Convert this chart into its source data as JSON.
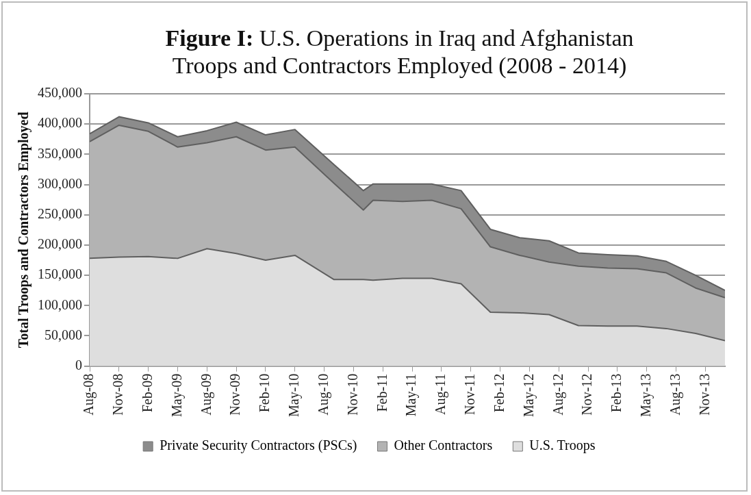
{
  "chart_data": {
    "type": "area",
    "title": "Figure I: U.S. Operations in Iraq and Afghanistan",
    "subtitle": "Troops and Contractors Employed (2008 - 2014)",
    "ylabel": "Total Troops and Contractors Employed",
    "stacked": true,
    "grid": "y",
    "legend": "bottom",
    "x": [
      "2008-08",
      "2008-11",
      "2009-02",
      "2009-05",
      "2009-08",
      "2009-11",
      "2010-02",
      "2010-05",
      "2010-09",
      "2010-12",
      "2011-01",
      "2011-04",
      "2011-07",
      "2011-10",
      "2012-01",
      "2012-04",
      "2012-07",
      "2012-10",
      "2013-01",
      "2013-04",
      "2013-07",
      "2013-10",
      "2014-01"
    ],
    "xlim": [
      "2008-08",
      "2014-01"
    ],
    "xticks": [
      {
        "value": "2008-08",
        "label": "Aug-08"
      },
      {
        "value": "2008-11",
        "label": "Nov-08"
      },
      {
        "value": "2009-02",
        "label": "Feb-09"
      },
      {
        "value": "2009-05",
        "label": "May-09"
      },
      {
        "value": "2009-08",
        "label": "Aug-09"
      },
      {
        "value": "2009-11",
        "label": "Nov-09"
      },
      {
        "value": "2010-02",
        "label": "Feb-10"
      },
      {
        "value": "2010-05",
        "label": "May-10"
      },
      {
        "value": "2010-08",
        "label": "Aug-10"
      },
      {
        "value": "2010-11",
        "label": "Nov-10"
      },
      {
        "value": "2011-02",
        "label": "Feb-11"
      },
      {
        "value": "2011-05",
        "label": "May-11"
      },
      {
        "value": "2011-08",
        "label": "Aug-11"
      },
      {
        "value": "2011-11",
        "label": "Nov-11"
      },
      {
        "value": "2012-02",
        "label": "Feb-12"
      },
      {
        "value": "2012-05",
        "label": "May-12"
      },
      {
        "value": "2012-08",
        "label": "Aug-12"
      },
      {
        "value": "2012-11",
        "label": "Nov-12"
      },
      {
        "value": "2013-02",
        "label": "Feb-13"
      },
      {
        "value": "2013-05",
        "label": "May-13"
      },
      {
        "value": "2013-08",
        "label": "Aug-13"
      },
      {
        "value": "2013-11",
        "label": "Nov-13"
      }
    ],
    "ylim": [
      0,
      450000
    ],
    "yticks": [
      {
        "value": 0,
        "label": "0"
      },
      {
        "value": 50000,
        "label": "50,000"
      },
      {
        "value": 100000,
        "label": "100,000"
      },
      {
        "value": 150000,
        "label": "150,000"
      },
      {
        "value": 200000,
        "label": "200,000"
      },
      {
        "value": 250000,
        "label": "250,000"
      },
      {
        "value": 300000,
        "label": "300,000"
      },
      {
        "value": 350000,
        "label": "350,000"
      },
      {
        "value": 400000,
        "label": "400,000"
      },
      {
        "value": 450000,
        "label": "450,000"
      }
    ],
    "series": [
      {
        "name": "U.S. Troops",
        "color": "#dedede",
        "values": [
          178000,
          180000,
          181000,
          178000,
          194000,
          186000,
          175000,
          183000,
          143000,
          143000,
          142000,
          145000,
          145000,
          136000,
          89000,
          88000,
          85000,
          67000,
          66000,
          66000,
          62000,
          54000,
          42000
        ]
      },
      {
        "name": "Other Contractors",
        "color": "#b3b3b3",
        "values": [
          193000,
          218000,
          207000,
          184000,
          175000,
          193000,
          182000,
          179000,
          159000,
          115000,
          132000,
          127000,
          129000,
          124000,
          108000,
          95000,
          87000,
          98000,
          96000,
          95000,
          92000,
          75000,
          71000
        ]
      },
      {
        "name": "Private Security Contractors (PSCs)",
        "color": "#8c8c8c",
        "values": [
          13000,
          14000,
          14000,
          17000,
          20000,
          24000,
          25000,
          29000,
          31000,
          32000,
          27000,
          29000,
          27000,
          30000,
          29000,
          29000,
          35000,
          22000,
          22000,
          21000,
          19000,
          21000,
          12000
        ]
      }
    ]
  }
}
